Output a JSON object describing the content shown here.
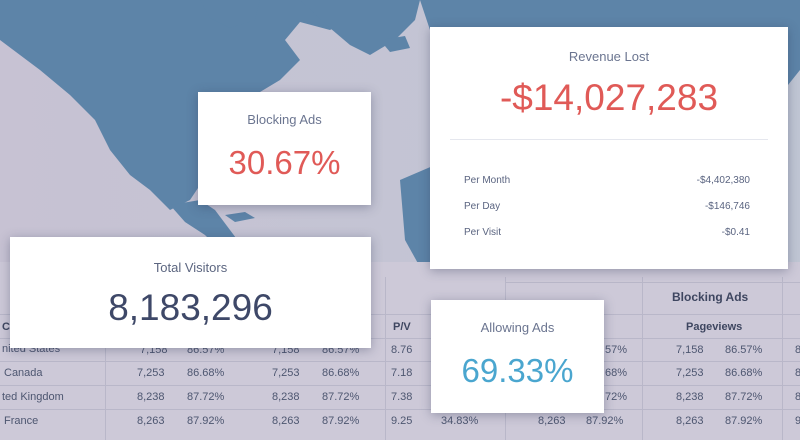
{
  "cards": {
    "blocking_ads": {
      "title": "Blocking Ads",
      "value": "30.67%"
    },
    "revenue_lost": {
      "title": "Revenue Lost",
      "value": "-$14,027,283",
      "rows": [
        {
          "label": "Per Month",
          "value": "-$4,402,380"
        },
        {
          "label": "Per Day",
          "value": "-$146,746"
        },
        {
          "label": "Per Visit",
          "value": "-$0.41"
        }
      ]
    },
    "total_visitors": {
      "title": "Total Visitors",
      "value": "8,183,296"
    },
    "allowing_ads": {
      "title": "Allowing Ads",
      "value": "69.33%"
    }
  },
  "table": {
    "group_header": "Blocking Ads",
    "headers": {
      "country_partial": "Co",
      "pv": "P/V",
      "pageviews": "Pageviews"
    },
    "rows": [
      {
        "country": "nited States",
        "a": "7,158",
        "b": "86.57%",
        "c": "7,158",
        "d": "86.57%",
        "pv": "8.76",
        "e": "",
        "f": "",
        "g": "57%",
        "h": "7,158",
        "i": "86.57%",
        "j": "8"
      },
      {
        "country": "Canada",
        "a": "7,253",
        "b": "86.68%",
        "c": "7,253",
        "d": "86.68%",
        "pv": "7.18",
        "e": "",
        "f": "",
        "g": "68%",
        "h": "7,253",
        "i": "86.68%",
        "j": "8"
      },
      {
        "country": "ted Kingdom",
        "a": "8,238",
        "b": "87.72%",
        "c": "8,238",
        "d": "87.72%",
        "pv": "7.38",
        "e": "",
        "f": "",
        "g": "72%",
        "h": "8,238",
        "i": "87.72%",
        "j": "8"
      },
      {
        "country": "France",
        "a": "8,263",
        "b": "87.92%",
        "c": "8,263",
        "d": "87.92%",
        "pv": "9.25",
        "e": "34.83%",
        "f": "8,263",
        "g": "87.92%",
        "h": "8,263",
        "i": "87.92%",
        "j": "9"
      }
    ]
  },
  "colors": {
    "negative": "#e05a57",
    "positive": "#4aa6cf",
    "map_land": "#5d84a8",
    "table_bg": "#cdc9d8"
  }
}
